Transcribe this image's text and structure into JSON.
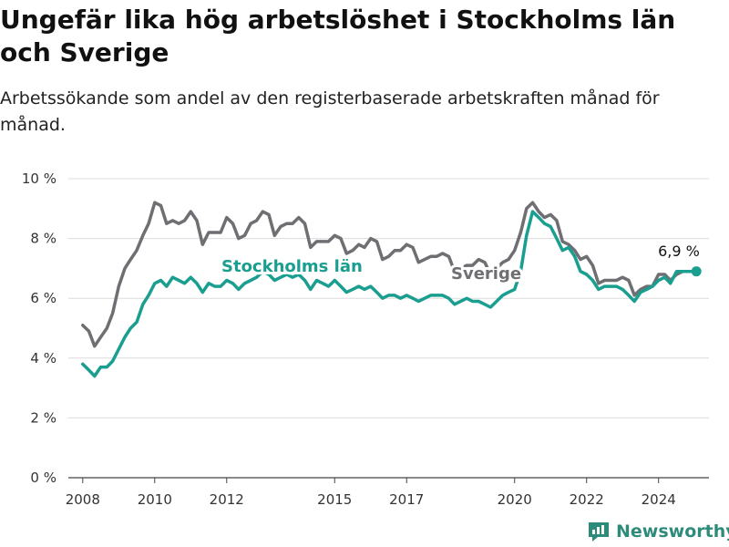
{
  "title": "Ungefär lika hög arbetslöshet i Stockholms län och Sverige",
  "subtitle": "Arbetssökande som andel av den registerbaserade arbetskraften månad för månad.",
  "brand": "Newsworthy",
  "colors": {
    "sverige": "#6e6e73",
    "stockholm": "#1a9e8f",
    "grid": "#dcdcdc",
    "brand": "#2e8b7a"
  },
  "chart_data": {
    "type": "line",
    "xlabel": "",
    "ylabel": "",
    "ylim": [
      0,
      10
    ],
    "xlim": [
      2007.6,
      2025.4
    ],
    "y_ticks": [
      0,
      2,
      4,
      6,
      8,
      10
    ],
    "y_tick_labels": [
      "0 %",
      "2 %",
      "4 %",
      "6 %",
      "8 %",
      "10 %"
    ],
    "x_ticks": [
      2008,
      2010,
      2012,
      2015,
      2017,
      2020,
      2022,
      2024
    ],
    "x_tick_labels": [
      "2008",
      "2010",
      "2012",
      "2015",
      "2017",
      "2020",
      "2022",
      "2024"
    ],
    "grid": true,
    "legend": "inline labels",
    "end_label": "6,9 %",
    "series": [
      {
        "name": "Sverige",
        "points": [
          [
            2008.0,
            5.1
          ],
          [
            2008.17,
            4.9
          ],
          [
            2008.33,
            4.4
          ],
          [
            2008.5,
            4.7
          ],
          [
            2008.67,
            5.0
          ],
          [
            2008.83,
            5.5
          ],
          [
            2009.0,
            6.4
          ],
          [
            2009.17,
            7.0
          ],
          [
            2009.33,
            7.3
          ],
          [
            2009.5,
            7.6
          ],
          [
            2009.67,
            8.1
          ],
          [
            2009.83,
            8.5
          ],
          [
            2010.0,
            9.2
          ],
          [
            2010.17,
            9.1
          ],
          [
            2010.33,
            8.5
          ],
          [
            2010.5,
            8.6
          ],
          [
            2010.67,
            8.5
          ],
          [
            2010.83,
            8.6
          ],
          [
            2011.0,
            8.9
          ],
          [
            2011.17,
            8.6
          ],
          [
            2011.33,
            7.8
          ],
          [
            2011.5,
            8.2
          ],
          [
            2011.67,
            8.2
          ],
          [
            2011.83,
            8.2
          ],
          [
            2012.0,
            8.7
          ],
          [
            2012.17,
            8.5
          ],
          [
            2012.33,
            8.0
          ],
          [
            2012.5,
            8.1
          ],
          [
            2012.67,
            8.5
          ],
          [
            2012.83,
            8.6
          ],
          [
            2013.0,
            8.9
          ],
          [
            2013.17,
            8.8
          ],
          [
            2013.33,
            8.1
          ],
          [
            2013.5,
            8.4
          ],
          [
            2013.67,
            8.5
          ],
          [
            2013.83,
            8.5
          ],
          [
            2014.0,
            8.7
          ],
          [
            2014.17,
            8.5
          ],
          [
            2014.33,
            7.7
          ],
          [
            2014.5,
            7.9
          ],
          [
            2014.67,
            7.9
          ],
          [
            2014.83,
            7.9
          ],
          [
            2015.0,
            8.1
          ],
          [
            2015.17,
            8.0
          ],
          [
            2015.33,
            7.5
          ],
          [
            2015.5,
            7.6
          ],
          [
            2015.67,
            7.8
          ],
          [
            2015.83,
            7.7
          ],
          [
            2016.0,
            8.0
          ],
          [
            2016.17,
            7.9
          ],
          [
            2016.33,
            7.3
          ],
          [
            2016.5,
            7.4
          ],
          [
            2016.67,
            7.6
          ],
          [
            2016.83,
            7.6
          ],
          [
            2017.0,
            7.8
          ],
          [
            2017.17,
            7.7
          ],
          [
            2017.33,
            7.2
          ],
          [
            2017.5,
            7.3
          ],
          [
            2017.67,
            7.4
          ],
          [
            2017.83,
            7.4
          ],
          [
            2018.0,
            7.5
          ],
          [
            2018.17,
            7.4
          ],
          [
            2018.33,
            6.9
          ],
          [
            2018.5,
            7.0
          ],
          [
            2018.67,
            7.1
          ],
          [
            2018.83,
            7.1
          ],
          [
            2019.0,
            7.3
          ],
          [
            2019.17,
            7.2
          ],
          [
            2019.33,
            6.8
          ],
          [
            2019.5,
            7.0
          ],
          [
            2019.67,
            7.2
          ],
          [
            2019.83,
            7.3
          ],
          [
            2020.0,
            7.6
          ],
          [
            2020.17,
            8.2
          ],
          [
            2020.33,
            9.0
          ],
          [
            2020.5,
            9.2
          ],
          [
            2020.67,
            8.9
          ],
          [
            2020.83,
            8.7
          ],
          [
            2021.0,
            8.8
          ],
          [
            2021.17,
            8.6
          ],
          [
            2021.33,
            7.9
          ],
          [
            2021.5,
            7.8
          ],
          [
            2021.67,
            7.6
          ],
          [
            2021.83,
            7.3
          ],
          [
            2022.0,
            7.4
          ],
          [
            2022.17,
            7.1
          ],
          [
            2022.33,
            6.5
          ],
          [
            2022.5,
            6.6
          ],
          [
            2022.67,
            6.6
          ],
          [
            2022.83,
            6.6
          ],
          [
            2023.0,
            6.7
          ],
          [
            2023.17,
            6.6
          ],
          [
            2023.33,
            6.1
          ],
          [
            2023.5,
            6.3
          ],
          [
            2023.67,
            6.4
          ],
          [
            2023.83,
            6.4
          ],
          [
            2024.0,
            6.8
          ],
          [
            2024.17,
            6.8
          ],
          [
            2024.33,
            6.6
          ],
          [
            2024.5,
            6.8
          ],
          [
            2024.67,
            6.9
          ],
          [
            2024.83,
            6.9
          ],
          [
            2025.0,
            6.9
          ]
        ]
      },
      {
        "name": "Stockholms län",
        "points": [
          [
            2008.0,
            3.8
          ],
          [
            2008.17,
            3.6
          ],
          [
            2008.33,
            3.4
          ],
          [
            2008.5,
            3.7
          ],
          [
            2008.67,
            3.7
          ],
          [
            2008.83,
            3.9
          ],
          [
            2009.0,
            4.3
          ],
          [
            2009.17,
            4.7
          ],
          [
            2009.33,
            5.0
          ],
          [
            2009.5,
            5.2
          ],
          [
            2009.67,
            5.8
          ],
          [
            2009.83,
            6.1
          ],
          [
            2010.0,
            6.5
          ],
          [
            2010.17,
            6.6
          ],
          [
            2010.33,
            6.4
          ],
          [
            2010.5,
            6.7
          ],
          [
            2010.67,
            6.6
          ],
          [
            2010.83,
            6.5
          ],
          [
            2011.0,
            6.7
          ],
          [
            2011.17,
            6.5
          ],
          [
            2011.33,
            6.2
          ],
          [
            2011.5,
            6.5
          ],
          [
            2011.67,
            6.4
          ],
          [
            2011.83,
            6.4
          ],
          [
            2012.0,
            6.6
          ],
          [
            2012.17,
            6.5
          ],
          [
            2012.33,
            6.3
          ],
          [
            2012.5,
            6.5
          ],
          [
            2012.67,
            6.6
          ],
          [
            2012.83,
            6.7
          ],
          [
            2013.0,
            6.9
          ],
          [
            2013.17,
            6.8
          ],
          [
            2013.33,
            6.6
          ],
          [
            2013.5,
            6.7
          ],
          [
            2013.67,
            6.8
          ],
          [
            2013.83,
            6.7
          ],
          [
            2014.0,
            6.8
          ],
          [
            2014.17,
            6.6
          ],
          [
            2014.33,
            6.3
          ],
          [
            2014.5,
            6.6
          ],
          [
            2014.67,
            6.5
          ],
          [
            2014.83,
            6.4
          ],
          [
            2015.0,
            6.6
          ],
          [
            2015.17,
            6.4
          ],
          [
            2015.33,
            6.2
          ],
          [
            2015.5,
            6.3
          ],
          [
            2015.67,
            6.4
          ],
          [
            2015.83,
            6.3
          ],
          [
            2016.0,
            6.4
          ],
          [
            2016.17,
            6.2
          ],
          [
            2016.33,
            6.0
          ],
          [
            2016.5,
            6.1
          ],
          [
            2016.67,
            6.1
          ],
          [
            2016.83,
            6.0
          ],
          [
            2017.0,
            6.1
          ],
          [
            2017.17,
            6.0
          ],
          [
            2017.33,
            5.9
          ],
          [
            2017.5,
            6.0
          ],
          [
            2017.67,
            6.1
          ],
          [
            2017.83,
            6.1
          ],
          [
            2018.0,
            6.1
          ],
          [
            2018.17,
            6.0
          ],
          [
            2018.33,
            5.8
          ],
          [
            2018.5,
            5.9
          ],
          [
            2018.67,
            6.0
          ],
          [
            2018.83,
            5.9
          ],
          [
            2019.0,
            5.9
          ],
          [
            2019.17,
            5.8
          ],
          [
            2019.33,
            5.7
          ],
          [
            2019.5,
            5.9
          ],
          [
            2019.67,
            6.1
          ],
          [
            2019.83,
            6.2
          ],
          [
            2020.0,
            6.3
          ],
          [
            2020.17,
            6.9
          ],
          [
            2020.33,
            8.1
          ],
          [
            2020.5,
            8.9
          ],
          [
            2020.67,
            8.7
          ],
          [
            2020.83,
            8.5
          ],
          [
            2021.0,
            8.4
          ],
          [
            2021.17,
            8.0
          ],
          [
            2021.33,
            7.6
          ],
          [
            2021.5,
            7.7
          ],
          [
            2021.67,
            7.4
          ],
          [
            2021.83,
            6.9
          ],
          [
            2022.0,
            6.8
          ],
          [
            2022.17,
            6.6
          ],
          [
            2022.33,
            6.3
          ],
          [
            2022.5,
            6.4
          ],
          [
            2022.67,
            6.4
          ],
          [
            2022.83,
            6.4
          ],
          [
            2023.0,
            6.3
          ],
          [
            2023.17,
            6.1
          ],
          [
            2023.33,
            5.9
          ],
          [
            2023.5,
            6.2
          ],
          [
            2023.67,
            6.3
          ],
          [
            2023.83,
            6.4
          ],
          [
            2024.0,
            6.6
          ],
          [
            2024.17,
            6.7
          ],
          [
            2024.33,
            6.5
          ],
          [
            2024.5,
            6.9
          ],
          [
            2024.67,
            6.9
          ],
          [
            2024.83,
            6.9
          ],
          [
            2025.0,
            6.9
          ]
        ]
      }
    ]
  }
}
